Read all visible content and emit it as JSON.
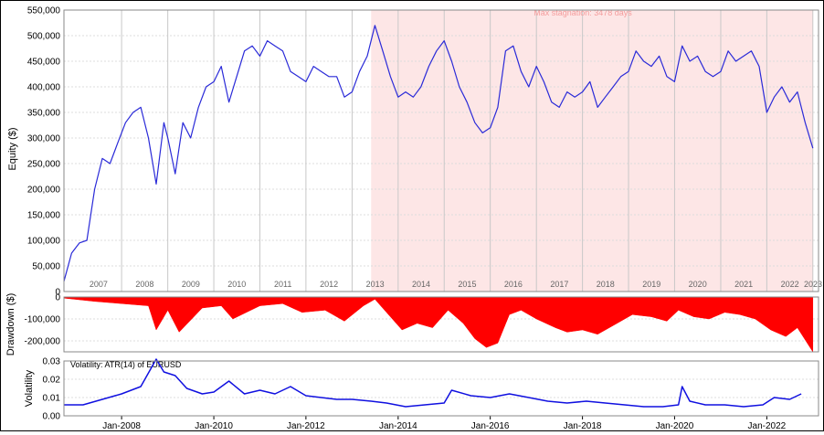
{
  "chart_data": [
    {
      "type": "line",
      "panel": "equity",
      "ylabel": "Equity ($)",
      "ylim": [
        0,
        550000
      ],
      "y_ticks": [
        "0",
        "50,000",
        "100,000",
        "150,000",
        "200,000",
        "250,000",
        "300,000",
        "350,000",
        "400,000",
        "450,000",
        "500,000",
        "550,000"
      ],
      "year_labels": [
        "2007",
        "2008",
        "2009",
        "2010",
        "2011",
        "2012",
        "2013",
        "2014",
        "2015",
        "2016",
        "2017",
        "2018",
        "2019",
        "2020",
        "2021",
        "2022",
        "2023"
      ],
      "annotation": "Max stagnation: 3478 days",
      "stagnation_range": [
        "2013-06",
        "2023-01"
      ],
      "grid": true,
      "line_color": "#2a2ad8",
      "shade_color": "#fde6e6",
      "series": [
        {
          "x": [
            "2006-10",
            "2006-12",
            "2007-02",
            "2007-04",
            "2007-06",
            "2007-08",
            "2007-10",
            "2007-12",
            "2008-02",
            "2008-04",
            "2008-06",
            "2008-08",
            "2008-10",
            "2008-12",
            "2009-01",
            "2009-03",
            "2009-05",
            "2009-07",
            "2009-09",
            "2009-11",
            "2010-01",
            "2010-03",
            "2010-05",
            "2010-07",
            "2010-09",
            "2010-11",
            "2011-01",
            "2011-03",
            "2011-05",
            "2011-07",
            "2011-09",
            "2011-11",
            "2012-01",
            "2012-03",
            "2012-05",
            "2012-07",
            "2012-09",
            "2012-11",
            "2013-01",
            "2013-03",
            "2013-05",
            "2013-07",
            "2013-09",
            "2013-11",
            "2014-01",
            "2014-03",
            "2014-05",
            "2014-07",
            "2014-09",
            "2014-11",
            "2015-01",
            "2015-03",
            "2015-05",
            "2015-07",
            "2015-09",
            "2015-11",
            "2016-01",
            "2016-03",
            "2016-05",
            "2016-07",
            "2016-09",
            "2016-11",
            "2017-01",
            "2017-03",
            "2017-05",
            "2017-07",
            "2017-09",
            "2017-11",
            "2018-01",
            "2018-03",
            "2018-05",
            "2018-07",
            "2018-09",
            "2018-11",
            "2019-01",
            "2019-03",
            "2019-05",
            "2019-07",
            "2019-09",
            "2019-11",
            "2020-01",
            "2020-03",
            "2020-05",
            "2020-07",
            "2020-09",
            "2020-11",
            "2021-01",
            "2021-03",
            "2021-05",
            "2021-07",
            "2021-09",
            "2021-11",
            "2022-01",
            "2022-03",
            "2022-05",
            "2022-07",
            "2022-09",
            "2022-11",
            "2023-01"
          ],
          "values": [
            20000,
            75000,
            95000,
            100000,
            200000,
            260000,
            250000,
            290000,
            330000,
            350000,
            360000,
            300000,
            210000,
            330000,
            300000,
            230000,
            330000,
            300000,
            360000,
            400000,
            410000,
            440000,
            370000,
            420000,
            470000,
            480000,
            460000,
            490000,
            480000,
            470000,
            430000,
            420000,
            410000,
            440000,
            430000,
            420000,
            420000,
            380000,
            390000,
            430000,
            460000,
            520000,
            470000,
            420000,
            380000,
            390000,
            380000,
            400000,
            440000,
            470000,
            490000,
            450000,
            400000,
            370000,
            330000,
            310000,
            320000,
            360000,
            470000,
            480000,
            430000,
            400000,
            440000,
            410000,
            370000,
            360000,
            390000,
            380000,
            390000,
            410000,
            360000,
            380000,
            400000,
            420000,
            430000,
            470000,
            450000,
            440000,
            460000,
            420000,
            410000,
            480000,
            450000,
            460000,
            430000,
            420000,
            430000,
            470000,
            450000,
            460000,
            470000,
            440000,
            350000,
            380000,
            400000,
            370000,
            390000,
            330000,
            280000
          ]
        }
      ]
    },
    {
      "type": "area",
      "panel": "drawdown",
      "ylabel": "Drawdown ($)",
      "ylim": [
        -250000,
        0
      ],
      "y_ticks": [
        "0",
        "-100,000",
        "-200,000"
      ],
      "fill_color": "#ff0000",
      "series": [
        {
          "x": [
            "2006-10",
            "2007-06",
            "2008-01",
            "2008-08",
            "2008-10",
            "2009-01",
            "2009-04",
            "2009-10",
            "2010-03",
            "2010-06",
            "2011-01",
            "2011-07",
            "2011-12",
            "2012-06",
            "2012-11",
            "2013-04",
            "2013-07",
            "2013-10",
            "2014-02",
            "2014-06",
            "2014-10",
            "2015-02",
            "2015-06",
            "2015-09",
            "2015-12",
            "2016-03",
            "2016-06",
            "2016-09",
            "2017-01",
            "2017-06",
            "2017-09",
            "2018-01",
            "2018-05",
            "2018-09",
            "2019-02",
            "2019-07",
            "2019-11",
            "2020-02",
            "2020-06",
            "2020-10",
            "2021-02",
            "2021-06",
            "2021-10",
            "2022-02",
            "2022-06",
            "2022-09",
            "2023-01"
          ],
          "values": [
            -5000,
            -20000,
            -30000,
            -40000,
            -150000,
            -60000,
            -160000,
            -50000,
            -40000,
            -100000,
            -40000,
            -30000,
            -70000,
            -60000,
            -110000,
            -40000,
            -10000,
            -70000,
            -150000,
            -120000,
            -140000,
            -60000,
            -120000,
            -190000,
            -230000,
            -210000,
            -80000,
            -60000,
            -100000,
            -140000,
            -160000,
            -150000,
            -170000,
            -130000,
            -80000,
            -90000,
            -110000,
            -60000,
            -90000,
            -100000,
            -70000,
            -80000,
            -100000,
            -150000,
            -180000,
            -140000,
            -250000
          ]
        }
      ]
    },
    {
      "type": "line",
      "panel": "volatility",
      "ylabel": "Volatility",
      "title": "Volatility: ATR(14) of EURUSD",
      "ylim": [
        0,
        0.03
      ],
      "y_ticks": [
        "0.00",
        "0.01",
        "0.02",
        "0.03"
      ],
      "x_ticks": [
        "Jan-2008",
        "Jan-2010",
        "Jan-2012",
        "Jan-2014",
        "Jan-2016",
        "Jan-2018",
        "Jan-2020",
        "Jan-2022"
      ],
      "line_color": "#1010e0",
      "series": [
        {
          "x": [
            "2006-10",
            "2007-03",
            "2007-08",
            "2008-01",
            "2008-06",
            "2008-10",
            "2008-12",
            "2009-03",
            "2009-06",
            "2009-10",
            "2010-01",
            "2010-05",
            "2010-09",
            "2011-01",
            "2011-05",
            "2011-09",
            "2012-01",
            "2012-05",
            "2012-09",
            "2013-01",
            "2013-06",
            "2013-10",
            "2014-03",
            "2014-08",
            "2015-01",
            "2015-03",
            "2015-08",
            "2016-01",
            "2016-06",
            "2016-11",
            "2017-04",
            "2017-09",
            "2018-02",
            "2018-07",
            "2018-12",
            "2019-05",
            "2019-10",
            "2020-02",
            "2020-03",
            "2020-05",
            "2020-09",
            "2021-02",
            "2021-07",
            "2021-12",
            "2022-03",
            "2022-07",
            "2022-10"
          ],
          "values": [
            0.006,
            0.006,
            0.009,
            0.012,
            0.016,
            0.031,
            0.024,
            0.022,
            0.015,
            0.012,
            0.013,
            0.019,
            0.012,
            0.014,
            0.012,
            0.016,
            0.011,
            0.01,
            0.009,
            0.009,
            0.008,
            0.007,
            0.005,
            0.006,
            0.007,
            0.014,
            0.011,
            0.01,
            0.012,
            0.01,
            0.008,
            0.007,
            0.008,
            0.007,
            0.006,
            0.005,
            0.005,
            0.006,
            0.016,
            0.008,
            0.006,
            0.006,
            0.005,
            0.006,
            0.01,
            0.009,
            0.012
          ]
        }
      ]
    }
  ]
}
